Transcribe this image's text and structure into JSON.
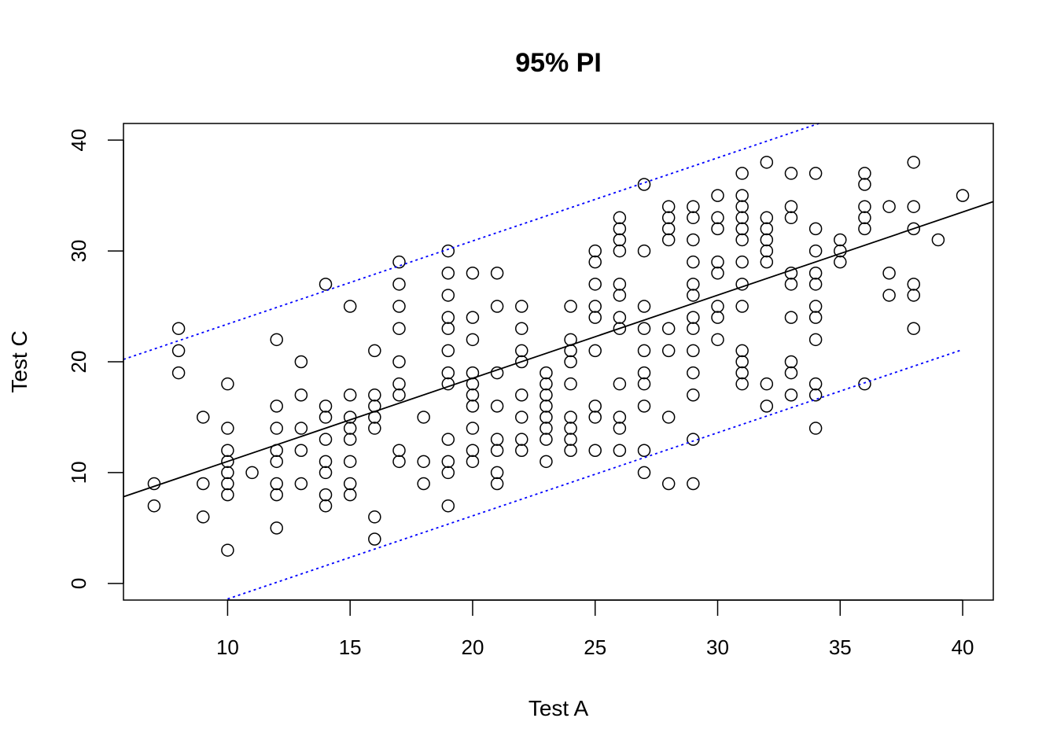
{
  "chart_data": {
    "type": "scatter",
    "title": "95% PI",
    "xlabel": "Test A",
    "ylabel": "Test C",
    "xlim": [
      5.75,
      41.25
    ],
    "ylim": [
      -1.5,
      41.5
    ],
    "xticks": [
      10,
      15,
      20,
      25,
      30,
      35,
      40
    ],
    "yticks": [
      0,
      10,
      20,
      30,
      40
    ],
    "grid": false,
    "fit_line": {
      "name": "regression",
      "intercept": 3.51,
      "slope": 0.75,
      "color": "#000000",
      "style": "solid"
    },
    "prediction_interval": {
      "level": "95%",
      "upper": {
        "intercept": 15.9,
        "slope": 0.75,
        "x_range": [
          5.75,
          41.25
        ]
      },
      "lower": {
        "intercept": -8.9,
        "slope": 0.75,
        "x_range": [
          10,
          40
        ]
      },
      "color": "#0000ff",
      "style": "dotted"
    },
    "points": [
      [
        7,
        9
      ],
      [
        7,
        7
      ],
      [
        8,
        23
      ],
      [
        8,
        21
      ],
      [
        8,
        19
      ],
      [
        9,
        15
      ],
      [
        9,
        9
      ],
      [
        9,
        6
      ],
      [
        10,
        18
      ],
      [
        10,
        14
      ],
      [
        10,
        12
      ],
      [
        10,
        11
      ],
      [
        10,
        10
      ],
      [
        10,
        9
      ],
      [
        10,
        8
      ],
      [
        10,
        3
      ],
      [
        11,
        10
      ],
      [
        12,
        22
      ],
      [
        12,
        16
      ],
      [
        12,
        14
      ],
      [
        12,
        12
      ],
      [
        12,
        11
      ],
      [
        12,
        9
      ],
      [
        12,
        8
      ],
      [
        12,
        5
      ],
      [
        13,
        20
      ],
      [
        13,
        17
      ],
      [
        13,
        14
      ],
      [
        13,
        12
      ],
      [
        13,
        9
      ],
      [
        14,
        27
      ],
      [
        14,
        16
      ],
      [
        14,
        15
      ],
      [
        14,
        13
      ],
      [
        14,
        11
      ],
      [
        14,
        10
      ],
      [
        14,
        8
      ],
      [
        14,
        7
      ],
      [
        15,
        25
      ],
      [
        15,
        17
      ],
      [
        15,
        15
      ],
      [
        15,
        14
      ],
      [
        15,
        13
      ],
      [
        15,
        11
      ],
      [
        15,
        9
      ],
      [
        15,
        8
      ],
      [
        16,
        21
      ],
      [
        16,
        17
      ],
      [
        16,
        16
      ],
      [
        16,
        15
      ],
      [
        16,
        14
      ],
      [
        16,
        6
      ],
      [
        16,
        4
      ],
      [
        17,
        29
      ],
      [
        17,
        27
      ],
      [
        17,
        25
      ],
      [
        17,
        23
      ],
      [
        17,
        20
      ],
      [
        17,
        18
      ],
      [
        17,
        17
      ],
      [
        17,
        12
      ],
      [
        17,
        11
      ],
      [
        18,
        15
      ],
      [
        18,
        11
      ],
      [
        18,
        9
      ],
      [
        19,
        30
      ],
      [
        19,
        28
      ],
      [
        19,
        26
      ],
      [
        19,
        24
      ],
      [
        19,
        23
      ],
      [
        19,
        21
      ],
      [
        19,
        19
      ],
      [
        19,
        18
      ],
      [
        19,
        13
      ],
      [
        19,
        11
      ],
      [
        19,
        10
      ],
      [
        19,
        7
      ],
      [
        20,
        28
      ],
      [
        20,
        24
      ],
      [
        20,
        22
      ],
      [
        20,
        19
      ],
      [
        20,
        18
      ],
      [
        20,
        17
      ],
      [
        20,
        16
      ],
      [
        20,
        14
      ],
      [
        20,
        12
      ],
      [
        20,
        11
      ],
      [
        21,
        28
      ],
      [
        21,
        25
      ],
      [
        21,
        19
      ],
      [
        21,
        16
      ],
      [
        21,
        13
      ],
      [
        21,
        12
      ],
      [
        21,
        10
      ],
      [
        21,
        9
      ],
      [
        22,
        25
      ],
      [
        22,
        23
      ],
      [
        22,
        21
      ],
      [
        22,
        20
      ],
      [
        22,
        17
      ],
      [
        22,
        15
      ],
      [
        22,
        13
      ],
      [
        22,
        12
      ],
      [
        23,
        19
      ],
      [
        23,
        18
      ],
      [
        23,
        17
      ],
      [
        23,
        16
      ],
      [
        23,
        15
      ],
      [
        23,
        14
      ],
      [
        23,
        13
      ],
      [
        23,
        11
      ],
      [
        24,
        25
      ],
      [
        24,
        22
      ],
      [
        24,
        21
      ],
      [
        24,
        20
      ],
      [
        24,
        18
      ],
      [
        24,
        15
      ],
      [
        24,
        14
      ],
      [
        24,
        13
      ],
      [
        24,
        12
      ],
      [
        25,
        30
      ],
      [
        25,
        29
      ],
      [
        25,
        27
      ],
      [
        25,
        25
      ],
      [
        25,
        24
      ],
      [
        25,
        21
      ],
      [
        25,
        16
      ],
      [
        25,
        15
      ],
      [
        25,
        12
      ],
      [
        26,
        33
      ],
      [
        26,
        32
      ],
      [
        26,
        31
      ],
      [
        26,
        30
      ],
      [
        26,
        27
      ],
      [
        26,
        26
      ],
      [
        26,
        24
      ],
      [
        26,
        23
      ],
      [
        26,
        18
      ],
      [
        26,
        15
      ],
      [
        26,
        14
      ],
      [
        26,
        12
      ],
      [
        27,
        36
      ],
      [
        27,
        30
      ],
      [
        27,
        25
      ],
      [
        27,
        23
      ],
      [
        27,
        21
      ],
      [
        27,
        19
      ],
      [
        27,
        18
      ],
      [
        27,
        16
      ],
      [
        27,
        12
      ],
      [
        27,
        10
      ],
      [
        28,
        34
      ],
      [
        28,
        33
      ],
      [
        28,
        32
      ],
      [
        28,
        31
      ],
      [
        28,
        23
      ],
      [
        28,
        21
      ],
      [
        28,
        15
      ],
      [
        28,
        9
      ],
      [
        29,
        34
      ],
      [
        29,
        33
      ],
      [
        29,
        31
      ],
      [
        29,
        29
      ],
      [
        29,
        27
      ],
      [
        29,
        26
      ],
      [
        29,
        24
      ],
      [
        29,
        23
      ],
      [
        29,
        21
      ],
      [
        29,
        19
      ],
      [
        29,
        17
      ],
      [
        29,
        13
      ],
      [
        29,
        9
      ],
      [
        30,
        35
      ],
      [
        30,
        33
      ],
      [
        30,
        32
      ],
      [
        30,
        29
      ],
      [
        30,
        28
      ],
      [
        30,
        25
      ],
      [
        30,
        24
      ],
      [
        30,
        22
      ],
      [
        31,
        37
      ],
      [
        31,
        35
      ],
      [
        31,
        34
      ],
      [
        31,
        33
      ],
      [
        31,
        32
      ],
      [
        31,
        31
      ],
      [
        31,
        29
      ],
      [
        31,
        27
      ],
      [
        31,
        25
      ],
      [
        31,
        21
      ],
      [
        31,
        20
      ],
      [
        31,
        19
      ],
      [
        31,
        18
      ],
      [
        32,
        38
      ],
      [
        32,
        33
      ],
      [
        32,
        32
      ],
      [
        32,
        31
      ],
      [
        32,
        30
      ],
      [
        32,
        29
      ],
      [
        32,
        18
      ],
      [
        32,
        16
      ],
      [
        33,
        37
      ],
      [
        33,
        34
      ],
      [
        33,
        33
      ],
      [
        33,
        28
      ],
      [
        33,
        27
      ],
      [
        33,
        24
      ],
      [
        33,
        20
      ],
      [
        33,
        19
      ],
      [
        33,
        17
      ],
      [
        34,
        37
      ],
      [
        34,
        32
      ],
      [
        34,
        30
      ],
      [
        34,
        28
      ],
      [
        34,
        27
      ],
      [
        34,
        25
      ],
      [
        34,
        24
      ],
      [
        34,
        22
      ],
      [
        34,
        18
      ],
      [
        34,
        17
      ],
      [
        34,
        14
      ],
      [
        35,
        31
      ],
      [
        35,
        30
      ],
      [
        35,
        29
      ],
      [
        36,
        37
      ],
      [
        36,
        36
      ],
      [
        36,
        34
      ],
      [
        36,
        33
      ],
      [
        36,
        32
      ],
      [
        36,
        18
      ],
      [
        37,
        34
      ],
      [
        37,
        28
      ],
      [
        37,
        26
      ],
      [
        38,
        38
      ],
      [
        38,
        34
      ],
      [
        38,
        32
      ],
      [
        38,
        27
      ],
      [
        38,
        26
      ],
      [
        38,
        23
      ],
      [
        39,
        31
      ],
      [
        40,
        35
      ]
    ]
  }
}
